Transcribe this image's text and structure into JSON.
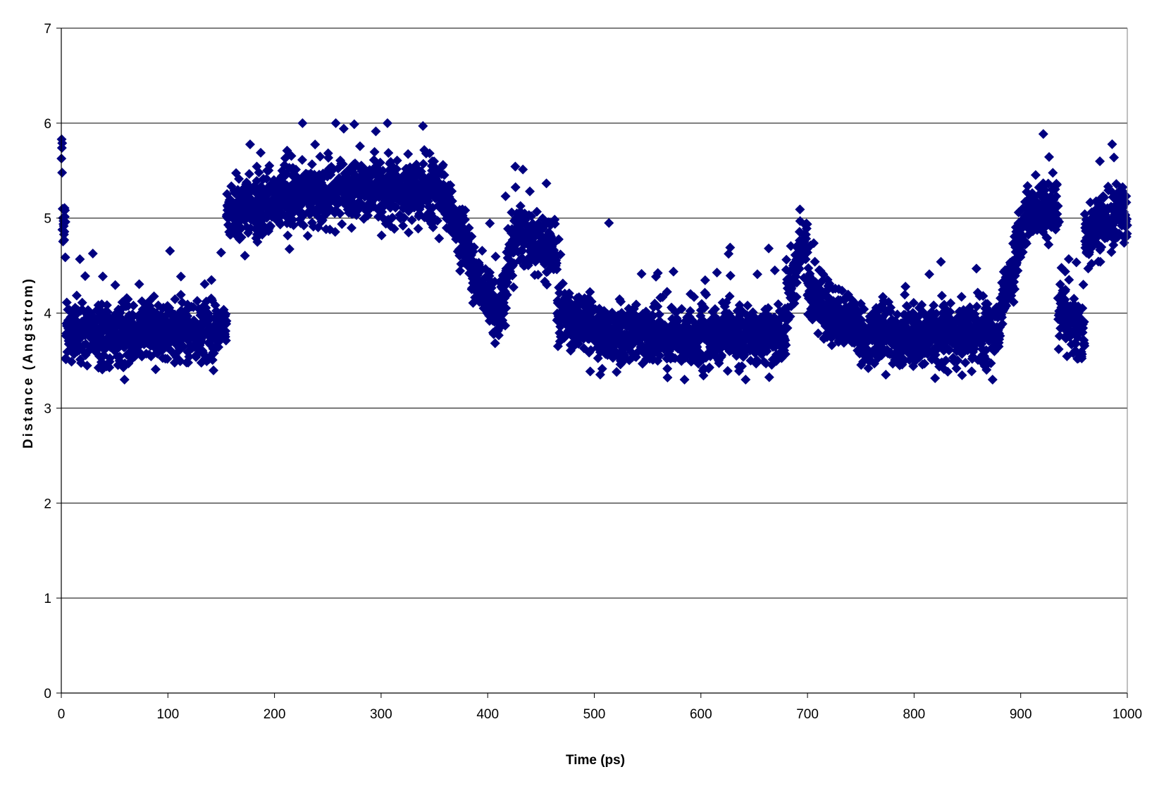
{
  "chart_data": {
    "type": "scatter",
    "title": "",
    "xlabel": "Time (ps)",
    "ylabel": "Distance (Angstrom)",
    "xlim": [
      0,
      1000
    ],
    "ylim": [
      0,
      7
    ],
    "xticks": [
      0,
      100,
      200,
      300,
      400,
      500,
      600,
      700,
      800,
      900,
      1000
    ],
    "yticks": [
      0,
      1,
      2,
      3,
      4,
      5,
      6,
      7
    ],
    "grid": "horizontal",
    "legend": "none",
    "marker": "diamond",
    "colors": {
      "marker": "#000080",
      "grid": "#000000",
      "background": "#ffffff"
    },
    "series": [
      {
        "segments": [
          {
            "x": [
              0,
              1
            ],
            "y": [
              5.8,
              5.7
            ]
          },
          {
            "x": [
              1,
              4
            ],
            "y": [
              4.9,
              5.0
            ]
          },
          {
            "x": [
              4,
              155
            ],
            "y": [
              3.8,
              3.8
            ]
          },
          {
            "x": [
              155,
              205
            ],
            "y": [
              5.05,
              5.2
            ]
          },
          {
            "x": [
              205,
              360
            ],
            "y": [
              5.25,
              5.3
            ]
          },
          {
            "x": [
              360,
              385
            ],
            "y": [
              5.2,
              4.6
            ]
          },
          {
            "x": [
              385,
              410
            ],
            "y": [
              4.5,
              4.0
            ]
          },
          {
            "x": [
              410,
              425
            ],
            "y": [
              3.9,
              4.7
            ]
          },
          {
            "x": [
              425,
              465
            ],
            "y": [
              4.9,
              4.6
            ]
          },
          {
            "x": [
              465,
              510
            ],
            "y": [
              4.0,
              3.8
            ]
          },
          {
            "x": [
              510,
              680
            ],
            "y": [
              3.75,
              3.75
            ]
          },
          {
            "x": [
              680,
              700
            ],
            "y": [
              4.2,
              4.8
            ]
          },
          {
            "x": [
              700,
              750
            ],
            "y": [
              4.2,
              3.8
            ]
          },
          {
            "x": [
              750,
              880
            ],
            "y": [
              3.75,
              3.8
            ]
          },
          {
            "x": [
              880,
              905
            ],
            "y": [
              4.0,
              5.0
            ]
          },
          {
            "x": [
              905,
              935
            ],
            "y": [
              5.1,
              5.1
            ]
          },
          {
            "x": [
              935,
              960
            ],
            "y": [
              4.0,
              3.8
            ]
          },
          {
            "x": [
              960,
              1000
            ],
            "y": [
              4.8,
              5.1
            ]
          }
        ],
        "spread": 0.28,
        "points_per_ps": 5
      }
    ]
  }
}
